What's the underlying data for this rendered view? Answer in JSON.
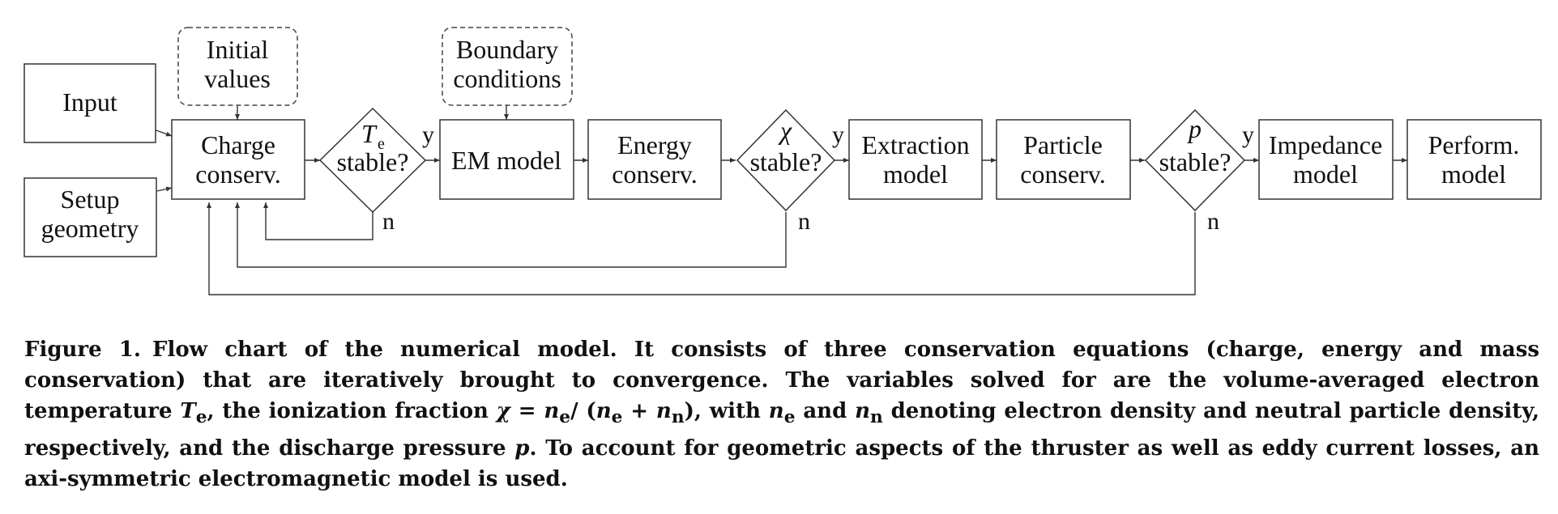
{
  "nodes": {
    "input": [
      "Input"
    ],
    "setup": [
      "Setup",
      "geometry"
    ],
    "initial": [
      "Initial",
      "values"
    ],
    "charge": [
      "Charge",
      "conserv."
    ],
    "boundary": [
      "Boundary",
      "conditions"
    ],
    "em": [
      "EM model"
    ],
    "energy": [
      "Energy",
      "conserv."
    ],
    "extraction": [
      "Extraction",
      "model"
    ],
    "particle": [
      "Particle",
      "conserv."
    ],
    "impedance": [
      "Impedance",
      "model"
    ],
    "perform": [
      "Perform.",
      "model"
    ]
  },
  "decisions": {
    "te": {
      "var": "T",
      "sub": "e",
      "text": "stable?"
    },
    "chi": {
      "var": "χ",
      "text": "stable?"
    },
    "p": {
      "var": "p",
      "text": "stable?"
    }
  },
  "branch_labels": {
    "yes": "y",
    "no": "n"
  },
  "caption": {
    "label": "Figure 1.",
    "segments": [
      {
        "t": "Flow chart of the numerical model. It consists of three conservation equations (charge, energy and mass conservation) that are iteratively brought to convergence. The variables solved for are the volume-averaged electron temperature "
      },
      {
        "t": "T",
        "i": true
      },
      {
        "t": "e",
        "sub": true
      },
      {
        "t": ", the ionization fraction "
      },
      {
        "t": "χ",
        "i": true
      },
      {
        "t": " = "
      },
      {
        "t": "n",
        "i": true
      },
      {
        "t": "e",
        "sub": true
      },
      {
        "t": "/ ("
      },
      {
        "t": "n",
        "i": true
      },
      {
        "t": "e",
        "sub": true
      },
      {
        "t": " + "
      },
      {
        "t": "n",
        "i": true
      },
      {
        "t": "n",
        "sub": true
      },
      {
        "t": "), with "
      },
      {
        "t": "n",
        "i": true
      },
      {
        "t": "e",
        "sub": true
      },
      {
        "t": " and "
      },
      {
        "t": "n",
        "i": true
      },
      {
        "t": "n",
        "sub": true
      },
      {
        "t": " denoting electron density and neutral particle density, respectively, and the discharge pressure "
      },
      {
        "t": "p",
        "i": true
      },
      {
        "t": ".  To account for geometric aspects of the thruster as well as eddy current losses, an axi-symmetric electromagnetic model is used."
      }
    ]
  }
}
